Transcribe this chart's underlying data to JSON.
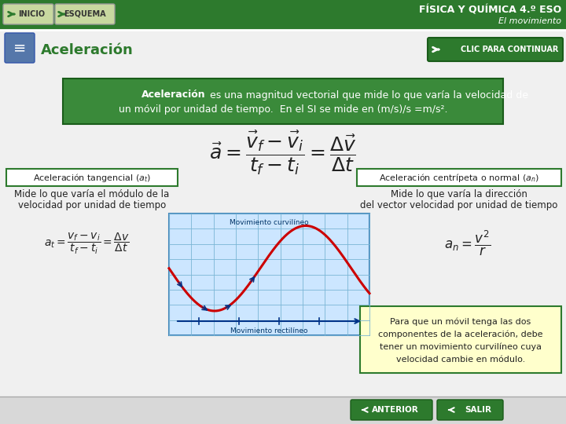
{
  "bg_color": "#e8e8e8",
  "header_color": "#2d7a2d",
  "header_text_color": "#ffffff",
  "header_title": "FÍSICA Y QUÍMICA 4.º ESO",
  "header_subtitle": "El movimiento",
  "btn_inicio_text": "INICIO",
  "btn_esquema_text": "ESQUEMA",
  "btn_continuar_text": "CLIC PARA CONTINUAR",
  "section_title": "Aceleración",
  "section_title_color": "#2d7a2d",
  "definition_bg": "#3a8a3a",
  "definition_text_color": "#ffffff",
  "box_border_color": "#2d7a2d",
  "note_bg": "#ffffcc",
  "note_border": "#2d7a2d",
  "note_text": "Para que un móvil tenga las dos\ncomponentes de la aceleración, debe\ntener un movimiento curvilíneo cuya\nvelocidad cambie en módulo.",
  "graph_bg": "#cce6ff",
  "graph_grid_color": "#7ab5d4",
  "graph_curve_color": "#cc0000",
  "graph_curv_label": "Movimiento curvilíneo",
  "graph_rect_label": "Movimiento rectilíneo",
  "btn_anterior": "ANTERIOR",
  "btn_salir": "SALIR",
  "btn_color": "#2d7a2d"
}
